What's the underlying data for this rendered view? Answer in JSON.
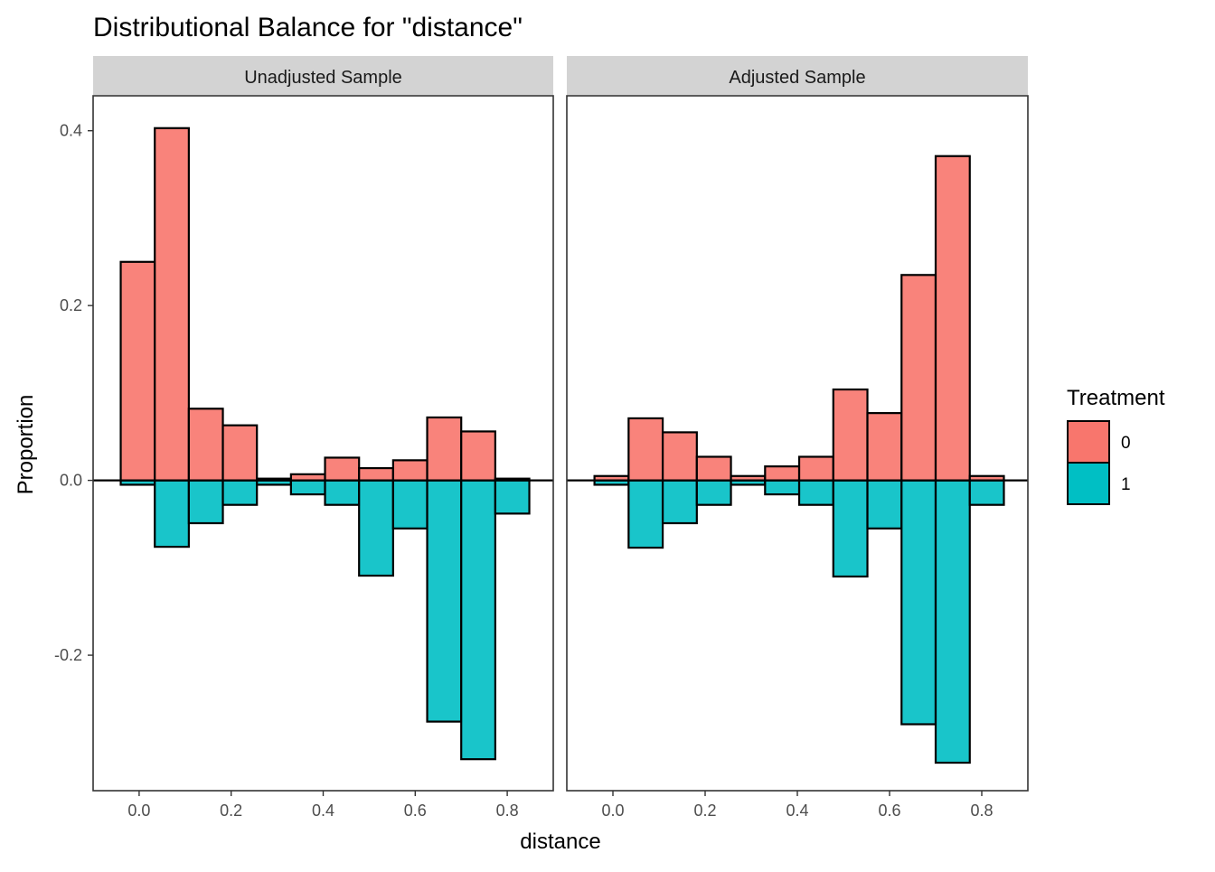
{
  "chart_data": {
    "type": "bar",
    "title": "Distributional Balance for \"distance\"",
    "xlabel": "distance",
    "ylabel": "Proportion",
    "xlim": [
      -0.1,
      0.9
    ],
    "ylim": [
      -0.355,
      0.44
    ],
    "x_ticks": [
      0.0,
      0.2,
      0.4,
      0.6,
      0.8
    ],
    "x_tick_labels": [
      "0.0",
      "0.2",
      "0.4",
      "0.6",
      "0.8"
    ],
    "y_ticks": [
      -0.2,
      0.0,
      0.2,
      0.4
    ],
    "y_tick_labels": [
      "-0.2",
      "0.0",
      "0.2",
      "0.4"
    ],
    "bin_width": 0.074,
    "bin_starts": [
      -0.04,
      0.034,
      0.108,
      0.182,
      0.256,
      0.33,
      0.404,
      0.478,
      0.552,
      0.626,
      0.7,
      0.774
    ],
    "grid": false,
    "legend": {
      "title": "Treatment",
      "position": "right",
      "items": [
        {
          "label": "0",
          "color": "#F8766D"
        },
        {
          "label": "1",
          "color": "#00BFC4"
        }
      ]
    },
    "panels": [
      {
        "strip_label": "Unadjusted Sample",
        "series": [
          {
            "treatment": "0",
            "values": [
              0.25,
              0.403,
              0.082,
              0.063,
              0.002,
              0.007,
              0.026,
              0.014,
              0.023,
              0.072,
              0.056,
              0.002
            ]
          },
          {
            "treatment": "1",
            "values": [
              -0.005,
              -0.076,
              -0.049,
              -0.028,
              -0.005,
              -0.016,
              -0.028,
              -0.109,
              -0.055,
              -0.276,
              -0.319,
              -0.038
            ]
          }
        ]
      },
      {
        "strip_label": "Adjusted Sample",
        "series": [
          {
            "treatment": "0",
            "values": [
              0.005,
              0.071,
              0.055,
              0.027,
              0.005,
              0.016,
              0.027,
              0.104,
              0.077,
              0.235,
              0.371,
              0.005
            ]
          },
          {
            "treatment": "1",
            "values": [
              -0.005,
              -0.077,
              -0.049,
              -0.028,
              -0.005,
              -0.016,
              -0.028,
              -0.11,
              -0.055,
              -0.279,
              -0.323,
              -0.028
            ]
          }
        ]
      }
    ]
  },
  "colors": {
    "fill_0": "#F8766D",
    "fill_1": "#00BFC4",
    "bar_stroke": "#000000",
    "strip_background": "#D3D3D3",
    "panel_border": "#333333",
    "tick_text": "#4d4d4d"
  }
}
